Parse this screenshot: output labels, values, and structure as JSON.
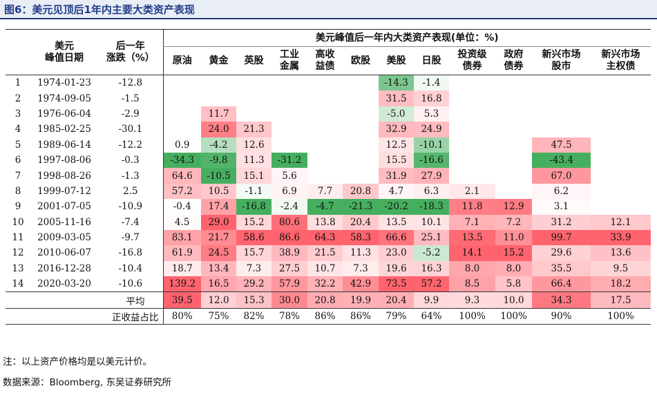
{
  "title": "图6：美元见顶后1年内主要大类资产表现",
  "header": {
    "col_date_label": "美元\n峰值日期",
    "col_change_label": "后一年\n涨跌（%）",
    "group_label": "美元峰值后一年内大类资产表现(单位：%)",
    "assets": [
      "原油",
      "黄金",
      "英股",
      "工业\n金属",
      "高收\n益债",
      "欧股",
      "美股",
      "日股",
      "投资级\n债券",
      "政府\n债券",
      "新兴市场\n股市",
      "新兴市场\n主权债"
    ]
  },
  "rows": [
    {
      "idx": "1",
      "date": "1974-01-23",
      "change": "-12.8",
      "values": [
        "",
        "",
        "",
        "",
        "",
        "",
        "-14.3",
        "-1.4",
        "",
        "",
        "",
        ""
      ]
    },
    {
      "idx": "2",
      "date": "1974-09-05",
      "change": "-1.5",
      "values": [
        "",
        "",
        "",
        "",
        "",
        "",
        "31.5",
        "16.8",
        "",
        "",
        "",
        ""
      ]
    },
    {
      "idx": "3",
      "date": "1976-06-04",
      "change": "-2.9",
      "values": [
        "",
        "11.7",
        "",
        "",
        "",
        "",
        "-5.0",
        "5.3",
        "",
        "",
        "",
        ""
      ]
    },
    {
      "idx": "4",
      "date": "1985-02-25",
      "change": "-30.1",
      "values": [
        "",
        "24.0",
        "21.3",
        "",
        "",
        "",
        "32.9",
        "24.9",
        "",
        "",
        "",
        ""
      ]
    },
    {
      "idx": "5",
      "date": "1989-06-14",
      "change": "-12.2",
      "values": [
        "0.9",
        "-4.2",
        "12.6",
        "",
        "",
        "",
        "12.5",
        "-10.1",
        "",
        "",
        "47.5",
        ""
      ]
    },
    {
      "idx": "6",
      "date": "1997-08-06",
      "change": "-0.3",
      "values": [
        "-34.3",
        "-9.8",
        "11.3",
        "-31.2",
        "",
        "",
        "15.5",
        "-16.6",
        "",
        "",
        "-43.4",
        ""
      ]
    },
    {
      "idx": "7",
      "date": "1998-08-26",
      "change": "-1.3",
      "values": [
        "64.6",
        "-10.5",
        "15.1",
        "5.6",
        "",
        "",
        "31.9",
        "27.9",
        "",
        "",
        "67.0",
        ""
      ]
    },
    {
      "idx": "8",
      "date": "1999-07-12",
      "change": "2.5",
      "values": [
        "57.2",
        "10.5",
        "-1.1",
        "6.9",
        "7.7",
        "20.8",
        "4.7",
        "6.3",
        "2.1",
        "",
        "6.2",
        ""
      ]
    },
    {
      "idx": "9",
      "date": "2001-07-05",
      "change": "-10.9",
      "values": [
        "-0.4",
        "17.4",
        "-16.8",
        "-2.4",
        "-4.7",
        "-21.3",
        "-20.2",
        "-18.3",
        "11.8",
        "12.9",
        "3.1",
        ""
      ]
    },
    {
      "idx": "10",
      "date": "2005-11-16",
      "change": "-7.4",
      "values": [
        "4.5",
        "29.0",
        "15.2",
        "80.6",
        "13.8",
        "20.4",
        "13.5",
        "10.1",
        "7.1",
        "7.2",
        "31.2",
        "12.1"
      ]
    },
    {
      "idx": "11",
      "date": "2009-03-05",
      "change": "-9.7",
      "values": [
        "83.1",
        "21.7",
        "58.6",
        "86.6",
        "64.3",
        "58.3",
        "66.6",
        "25.1",
        "13.5",
        "11.0",
        "99.7",
        "33.9"
      ]
    },
    {
      "idx": "12",
      "date": "2010-06-07",
      "change": "-16.8",
      "values": [
        "61.9",
        "24.5",
        "15.7",
        "38.9",
        "21.5",
        "11.3",
        "23.0",
        "-5.2",
        "14.1",
        "15.2",
        "29.6",
        "13.6"
      ]
    },
    {
      "idx": "13",
      "date": "2016-12-28",
      "change": "-10.4",
      "values": [
        "18.7",
        "13.4",
        "7.3",
        "27.5",
        "10.7",
        "7.3",
        "19.6",
        "16.3",
        "8.0",
        "8.0",
        "35.5",
        "9.5"
      ]
    },
    {
      "idx": "14",
      "date": "2020-03-20",
      "change": "-10.6",
      "values": [
        "139.2",
        "16.5",
        "29.2",
        "57.9",
        "32.2",
        "42.9",
        "73.5",
        "57.2",
        "8.5",
        "5.8",
        "66.4",
        "18.2"
      ]
    }
  ],
  "average": {
    "label": "平均",
    "values": [
      "39.5",
      "12.0",
      "15.3",
      "30.0",
      "20.8",
      "19.9",
      "20.4",
      "9.9",
      "9.3",
      "10.0",
      "34.3",
      "17.5"
    ]
  },
  "positive_ratio": {
    "label": "正收益占比",
    "values": [
      "80%",
      "75%",
      "82%",
      "78%",
      "86%",
      "86%",
      "79%",
      "64%",
      "100%",
      "100%",
      "90%",
      "100%"
    ]
  },
  "note": "注：以上资产价格均是以美元计价。",
  "source": "数据来源：Bloomberg, 东吴证券研究所",
  "colors": {
    "positive": "#e85c6a",
    "negative": "#2e9e4f",
    "title_bg": "#e9edf5",
    "title_text": "#1f3c88"
  }
}
